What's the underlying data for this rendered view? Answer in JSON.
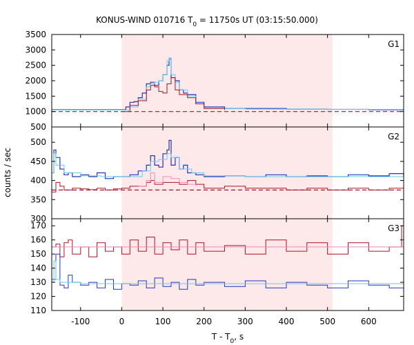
{
  "chart_data": {
    "type": "line",
    "title": "KONUS-WIND 010716 T",
    "title_sub": "0",
    "title_rest": " = 11750s UT (03:15:50.000)",
    "xlabel": "T - T",
    "xlabel_sub": "0",
    "xlabel_rest": ", s",
    "ylabel": "counts / sec",
    "xlim": [
      -170,
      685
    ],
    "xticks": [
      -100,
      0,
      100,
      200,
      300,
      400,
      500,
      600
    ],
    "xtick_labels": [
      "-100",
      "0",
      "100",
      "200",
      "300",
      "400",
      "500",
      "600"
    ],
    "shaded_interval": [
      0,
      512
    ],
    "colors": {
      "shade": "#fde8ea",
      "blue": "#2233bb",
      "light_blue": "#66ccee",
      "dark_red": "#aa1122",
      "pink": "#ee88bb",
      "dash_red": "#aa1122"
    },
    "panels": [
      {
        "label": "G1",
        "ylim": [
          500,
          3500
        ],
        "yticks": [
          500,
          1000,
          1500,
          2000,
          2500,
          3000,
          3500
        ],
        "ytick_labels": [
          "500",
          "1000",
          "1500",
          "2000",
          "2500",
          "3000",
          "3500"
        ],
        "background_level": 1000,
        "series_styles": [
          {
            "color": "blue",
            "width": 1.2,
            "dash": ""
          },
          {
            "color": "light_blue",
            "width": 1.0,
            "dash": ""
          },
          {
            "color": "dark_red",
            "width": 1.0,
            "dash": ""
          },
          {
            "color": "dash_red",
            "width": 1.2,
            "dash": "6,4"
          }
        ],
        "series_data": [
          {
            "x": [
              -170,
              -120,
              -60,
              0,
              10,
              20,
              30,
              40,
              50,
              60,
              70,
              80,
              90,
              100,
              110,
              115,
              120,
              130,
              140,
              150,
              160,
              180,
              200,
              250,
              300,
              400,
              500,
              600,
              685
            ],
            "y": [
              1060,
              1060,
              1060,
              1060,
              1150,
              1300,
              1320,
              1450,
              1600,
              1900,
              1950,
              1850,
              2000,
              2200,
              2500,
              2700,
              2100,
              2000,
              1700,
              1600,
              1550,
              1300,
              1150,
              1100,
              1100,
              1080,
              1070,
              1060,
              1060
            ]
          },
          {
            "x": [
              -170,
              -60,
              0,
              20,
              40,
              60,
              70,
              80,
              90,
              100,
              110,
              115,
              120,
              130,
              140,
              160,
              180,
              200,
              300,
              500,
              685
            ],
            "y": [
              1050,
              1050,
              1050,
              1150,
              1400,
              1800,
              1900,
              1950,
              2000,
              2200,
              2650,
              2750,
              2200,
              1950,
              1700,
              1500,
              1250,
              1100,
              1080,
              1070,
              1050
            ]
          },
          {
            "x": [
              0,
              20,
              40,
              60,
              70,
              80,
              90,
              100,
              110,
              120,
              130,
              140,
              160,
              180,
              200,
              250
            ],
            "y": [
              1000,
              1200,
              1350,
              1700,
              1850,
              1800,
              1650,
              1600,
              1900,
              2100,
              1700,
              1550,
              1450,
              1250,
              1100,
              1050
            ]
          },
          {
            "x": [
              -170,
              685
            ],
            "y": [
              1000,
              1000
            ]
          }
        ]
      },
      {
        "label": "G2",
        "ylim": [
          300,
          540
        ],
        "yticks": [
          300,
          350,
          400,
          450,
          500
        ],
        "ytick_labels": [
          "300",
          "350",
          "400",
          "450",
          "500"
        ],
        "background_level": 375,
        "series_styles": [
          {
            "color": "blue",
            "width": 1.2,
            "dash": ""
          },
          {
            "color": "light_blue",
            "width": 1.0,
            "dash": ""
          },
          {
            "color": "dark_red",
            "width": 1.0,
            "dash": ""
          },
          {
            "color": "pink",
            "width": 1.0,
            "dash": ""
          },
          {
            "color": "dash_red",
            "width": 1.2,
            "dash": "6,4"
          }
        ],
        "series_data": [
          {
            "x": [
              -170,
              -165,
              -160,
              -150,
              -140,
              -130,
              -120,
              -100,
              -80,
              -60,
              -40,
              -20,
              0,
              20,
              40,
              60,
              70,
              80,
              90,
              100,
              110,
              115,
              120,
              130,
              140,
              150,
              160,
              180,
              200,
              250,
              300,
              350,
              400,
              450,
              500,
              550,
              600,
              650,
              685
            ],
            "y": [
              420,
              480,
              460,
              430,
              415,
              420,
              410,
              415,
              410,
              420,
              405,
              410,
              410,
              415,
              425,
              440,
              465,
              440,
              435,
              470,
              480,
              505,
              440,
              460,
              430,
              440,
              420,
              415,
              410,
              412,
              410,
              415,
              410,
              412,
              410,
              415,
              412,
              418,
              410
            ]
          },
          {
            "x": [
              -170,
              -165,
              -160,
              -140,
              -100,
              -50,
              0,
              50,
              70,
              90,
              110,
              120,
              140,
              170,
              200,
              300,
              400,
              500,
              685
            ],
            "y": [
              420,
              470,
              440,
              420,
              412,
              410,
              410,
              425,
              450,
              455,
              470,
              460,
              430,
              420,
              412,
              410,
              410,
              410,
              410
            ]
          },
          {
            "x": [
              -170,
              -160,
              -150,
              -140,
              -120,
              -100,
              -80,
              -60,
              -40,
              -20,
              0,
              20,
              40,
              60,
              70,
              80,
              100,
              120,
              140,
              160,
              180,
              200,
              250,
              300,
              350,
              400,
              450,
              500,
              550,
              600,
              650,
              685
            ],
            "y": [
              370,
              395,
              385,
              375,
              380,
              378,
              376,
              380,
              375,
              378,
              380,
              385,
              385,
              395,
              400,
              390,
              395,
              395,
              390,
              400,
              390,
              380,
              385,
              380,
              380,
              375,
              380,
              375,
              380,
              375,
              380,
              378
            ]
          },
          {
            "x": [
              40,
              60,
              70,
              80,
              100,
              120,
              140,
              160,
              180
            ],
            "y": [
              385,
              400,
              420,
              395,
              410,
              405,
              395,
              390,
              385
            ]
          },
          {
            "x": [
              -170,
              685
            ],
            "y": [
              375,
              375
            ]
          }
        ]
      },
      {
        "label": "G3",
        "ylim": [
          110,
          175
        ],
        "yticks": [
          110,
          120,
          130,
          140,
          150,
          160,
          170
        ],
        "ytick_labels": [
          "110",
          "120",
          "130",
          "140",
          "150",
          "160",
          "170"
        ],
        "background_level": 155,
        "series_styles": [
          {
            "color": "dark_red",
            "width": 1.0,
            "dash": ""
          },
          {
            "color": "pink",
            "width": 1.0,
            "dash": ""
          },
          {
            "color": "blue",
            "width": 1.0,
            "dash": ""
          },
          {
            "color": "light_blue",
            "width": 1.0,
            "dash": ""
          }
        ],
        "series_data": [
          {
            "x": [
              -170,
              -160,
              -150,
              -140,
              -130,
              -120,
              -100,
              -80,
              -60,
              -40,
              -20,
              0,
              20,
              40,
              60,
              80,
              100,
              120,
              140,
              160,
              180,
              200,
              250,
              300,
              350,
              400,
              450,
              500,
              550,
              600,
              650,
              680,
              685
            ],
            "y": [
              155,
              157,
              148,
              158,
              160,
              150,
              155,
              148,
              158,
              152,
              155,
              150,
              160,
              152,
              162,
              150,
              158,
              153,
              160,
              150,
              158,
              152,
              156,
              150,
              160,
              152,
              158,
              150,
              158,
              152,
              155,
              170,
              170
            ]
          },
          {
            "x": [
              -170,
              685
            ],
            "y": [
              155,
              155
            ]
          },
          {
            "x": [
              -170,
              -160,
              -150,
              -140,
              -130,
              -120,
              -100,
              -80,
              -60,
              -40,
              -20,
              0,
              20,
              40,
              60,
              80,
              100,
              120,
              140,
              160,
              180,
              200,
              250,
              300,
              350,
              400,
              450,
              500,
              550,
              600,
              650,
              685
            ],
            "y": [
              132,
              150,
              128,
              126,
              135,
              130,
              128,
              130,
              126,
              132,
              125,
              129,
              128,
              131,
              126,
              133,
              127,
              130,
              125,
              132,
              128,
              130,
              127,
              131,
              126,
              130,
              128,
              126,
              131,
              128,
              126,
              130
            ]
          },
          {
            "x": [
              -170,
              -165,
              -160,
              -150,
              -100,
              0,
              100,
              300,
              500,
              685
            ],
            "y": [
              130,
              145,
              132,
              130,
              129,
              129,
              129,
              129,
              129,
              129
            ]
          }
        ]
      }
    ]
  }
}
